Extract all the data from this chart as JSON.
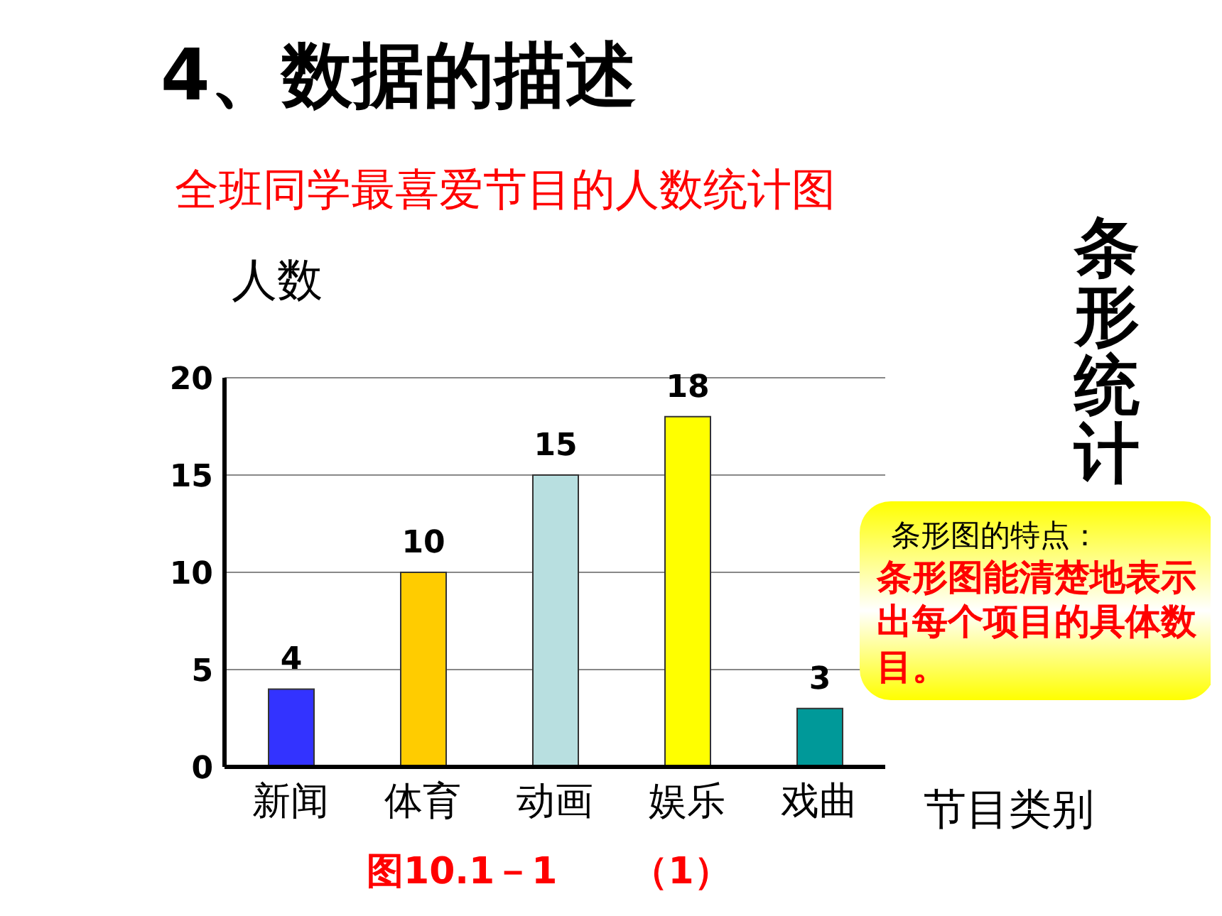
{
  "chart_data": {
    "type": "bar",
    "title": "4、数据的描述",
    "subtitle": "全班同学最喜爱节目的人数统计图",
    "xlabel": "节目类别",
    "ylabel": "人数",
    "categories": [
      "新闻",
      "体育",
      "动画",
      "娱乐",
      "戏曲"
    ],
    "values": [
      4,
      10,
      15,
      18,
      3
    ],
    "colors": [
      "#3333ff",
      "#ffcc00",
      "#b8dfe0",
      "#ffff00",
      "#009999"
    ],
    "ylim": [
      0,
      20
    ],
    "yticks": [
      0,
      5,
      10,
      15,
      20
    ],
    "grid": "y",
    "data_labels": true,
    "annotations": [
      "条形统计",
      "条形图的特点：",
      "条形图能清楚地表示出每个项目的具体数目。",
      "图10.1－1　　（1）"
    ]
  }
}
